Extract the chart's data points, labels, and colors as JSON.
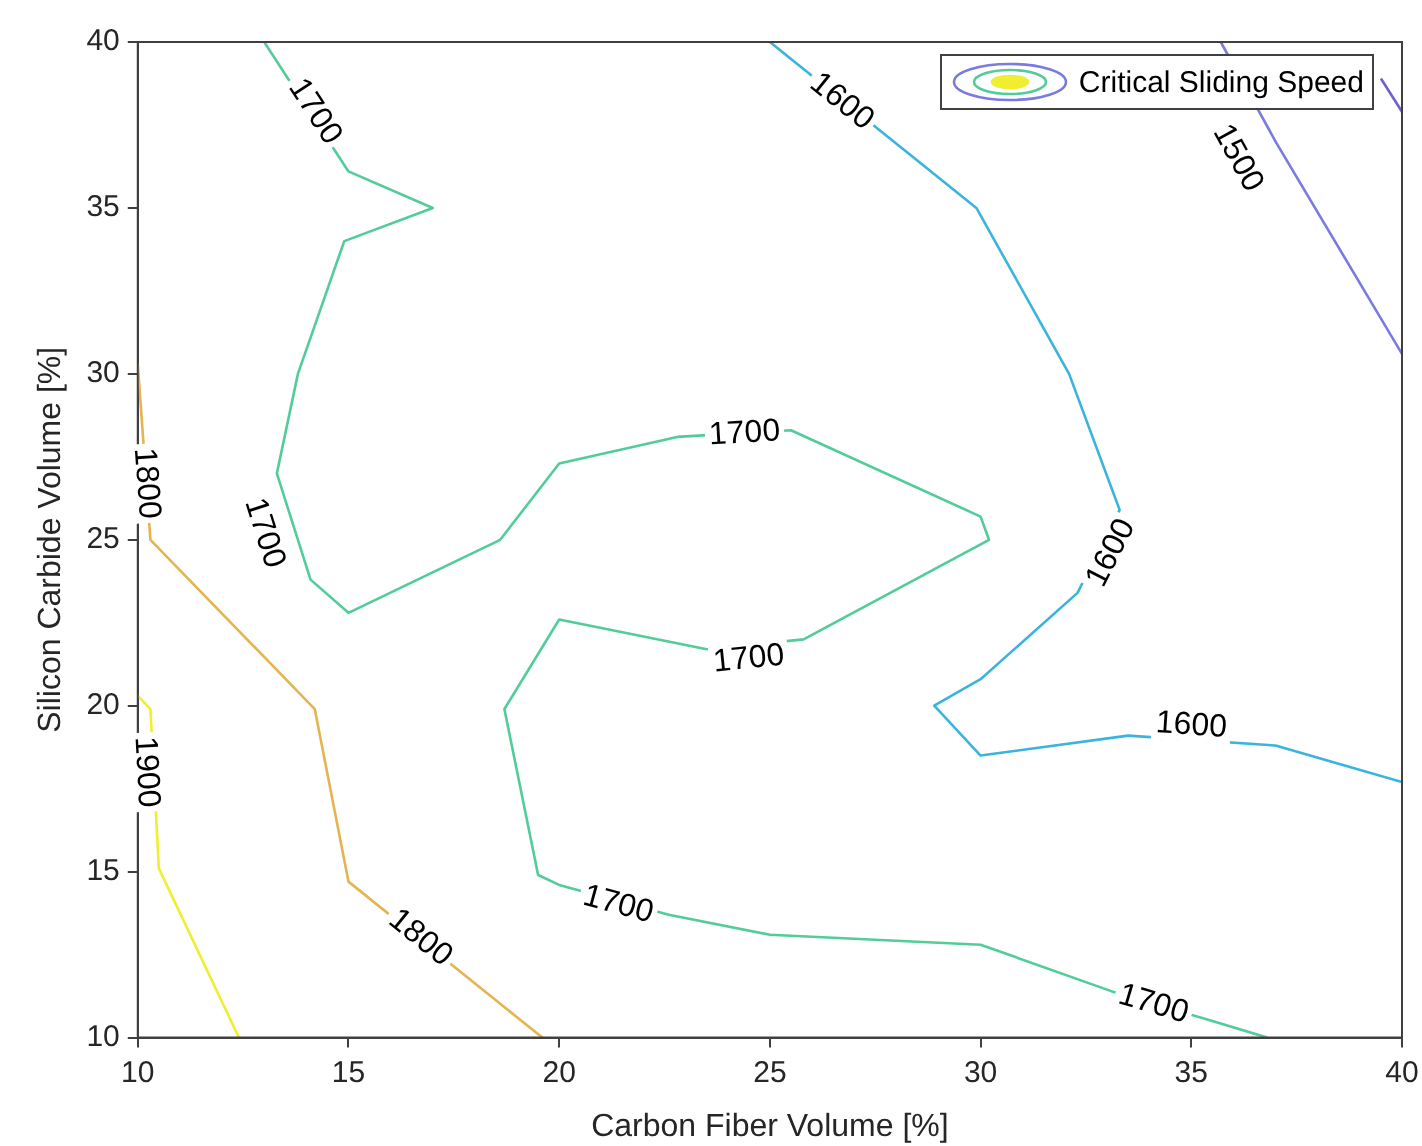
{
  "chart_data": {
    "type": "line",
    "xlabel": "Carbon Fiber Volume [%]",
    "ylabel": "Silicon Carbide Volume [%]",
    "legend_title": "Critical Sliding Speed",
    "grid": false,
    "marker": "none",
    "line_style": "solid",
    "xlim": [
      10,
      40
    ],
    "ylim": [
      10,
      40
    ],
    "xticks": [
      10,
      15,
      20,
      25,
      30,
      35,
      40
    ],
    "yticks": [
      10,
      15,
      20,
      25,
      30,
      35,
      40
    ],
    "series": [
      {
        "color": "#7060d0",
        "x": [
          39.5,
          40
        ],
        "values": [
          38.9,
          37.9
        ]
      },
      {
        "color": "#7a7ae0",
        "x": [
          35.7,
          37,
          40
        ],
        "values": [
          40,
          37,
          30.6
        ]
      },
      {
        "color": "#3ab4dc",
        "x": [
          25,
          29.9,
          32.1,
          33.3,
          32.3,
          30,
          28.9,
          30,
          33.5,
          37,
          40
        ],
        "values": [
          40,
          35,
          30,
          25.9,
          23.4,
          20.8,
          20,
          18.5,
          19.1,
          18.8,
          17.7
        ]
      },
      {
        "color": "#52cc98",
        "x": [
          13,
          15,
          17,
          14.9,
          13.8,
          13.3,
          14.1,
          15,
          18.6,
          20,
          22.8,
          25.5,
          30,
          30.2,
          25.8,
          23.5,
          20,
          18.7,
          19.5,
          20,
          22.6,
          25,
          30,
          33.1,
          35.5,
          36.8
        ],
        "values": [
          40,
          36.1,
          35,
          34,
          30,
          27,
          23.8,
          22.8,
          25,
          27.3,
          28.1,
          28.3,
          25.7,
          25,
          22,
          21.7,
          22.6,
          19.9,
          14.9,
          14.6,
          13.7,
          13.1,
          12.8,
          11.4,
          10.5,
          10
        ]
      },
      {
        "color": "#e4b450",
        "x": [
          10,
          10.3,
          14.2,
          15,
          19.6
        ],
        "values": [
          30.3,
          25,
          19.9,
          14.7,
          10
        ]
      },
      {
        "color": "#f0ee30",
        "x": [
          10,
          10.3,
          10.5,
          12.4
        ],
        "values": [
          20.3,
          19.9,
          15.1,
          10
        ]
      }
    ],
    "annotations": [
      {
        "text": "1700",
        "x": 14.2,
        "y": 37.9
      },
      {
        "text": "1600",
        "x": 26.7,
        "y": 38.2
      },
      {
        "text": "1500",
        "x": 36.1,
        "y": 36.5
      },
      {
        "text": "1800",
        "x": 10.2,
        "y": 26.7
      },
      {
        "text": "1700",
        "x": 13.0,
        "y": 25.2
      },
      {
        "text": "1700",
        "x": 24.4,
        "y": 28.2
      },
      {
        "text": "1600",
        "x": 33.1,
        "y": 24.6
      },
      {
        "text": "1700",
        "x": 24.5,
        "y": 21.4
      },
      {
        "text": "1600",
        "x": 35.0,
        "y": 19.4
      },
      {
        "text": "1900",
        "x": 10.2,
        "y": 18.0
      },
      {
        "text": "1700",
        "x": 21.4,
        "y": 14.0
      },
      {
        "text": "1800",
        "x": 16.7,
        "y": 13.0
      },
      {
        "text": "1700",
        "x": 34.1,
        "y": 11.0
      }
    ]
  }
}
